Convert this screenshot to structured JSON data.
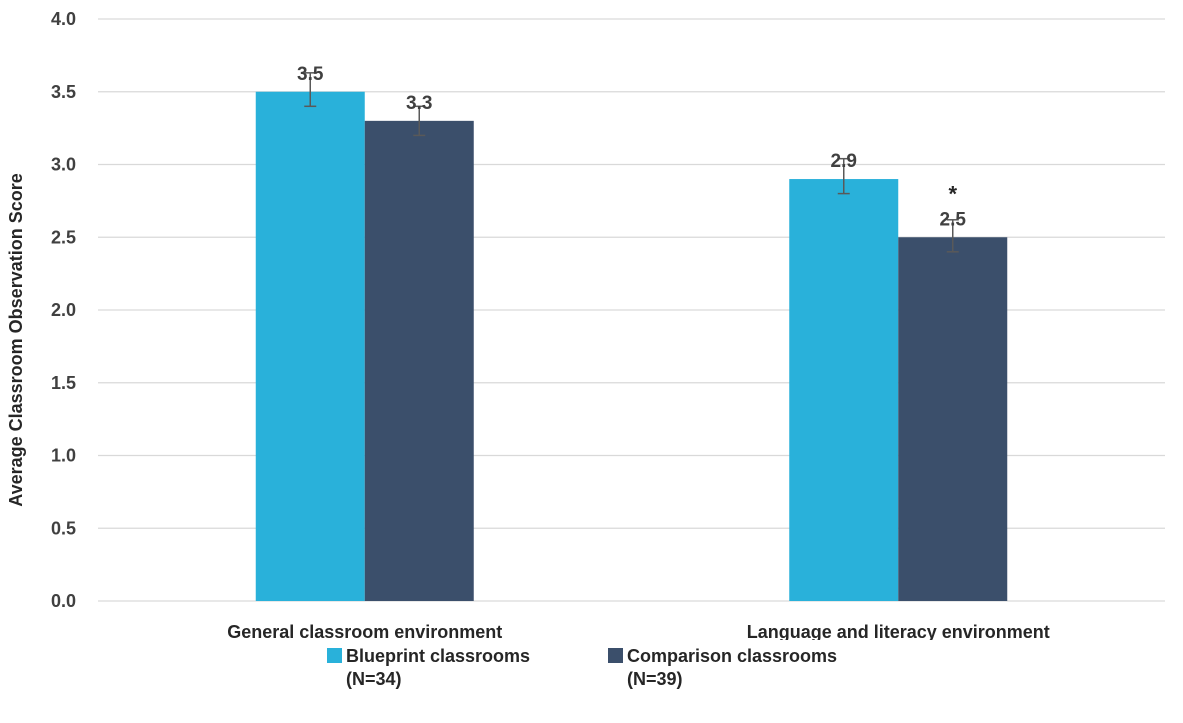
{
  "chart_data": {
    "type": "bar",
    "title": "",
    "xlabel": "",
    "ylabel": "Average Classroom Observation Score",
    "ylim": [
      0,
      4
    ],
    "y_ticks": [
      "0.0",
      "0.5",
      "1.0",
      "1.5",
      "2.0",
      "2.5",
      "3.0",
      "3.5",
      "4.0"
    ],
    "grid": true,
    "legend_position": "bottom",
    "categories": [
      "General classroom environment",
      "Language and literacy environment"
    ],
    "series": [
      {
        "name": "Blueprint classrooms (N=34)",
        "name_lines": [
          "Blueprint classrooms",
          "(N=34)"
        ],
        "color": "#29b1da",
        "values": [
          3.5,
          2.9
        ],
        "labels": [
          "3.5",
          "2.9"
        ],
        "error": [
          [
            3.4,
            3.63
          ],
          [
            2.8,
            3.04
          ]
        ]
      },
      {
        "name": "Comparison classrooms (N=39)",
        "name_lines": [
          "Comparison classrooms",
          "(N=39)"
        ],
        "color": "#3b4f6b",
        "values": [
          3.3,
          2.5
        ],
        "labels": [
          "3.3",
          "2.5"
        ],
        "error": [
          [
            3.2,
            3.4
          ],
          [
            2.4,
            2.62
          ]
        ]
      }
    ],
    "annotations": [
      {
        "text": "*",
        "category_index": 1,
        "series_index": 1
      }
    ]
  }
}
